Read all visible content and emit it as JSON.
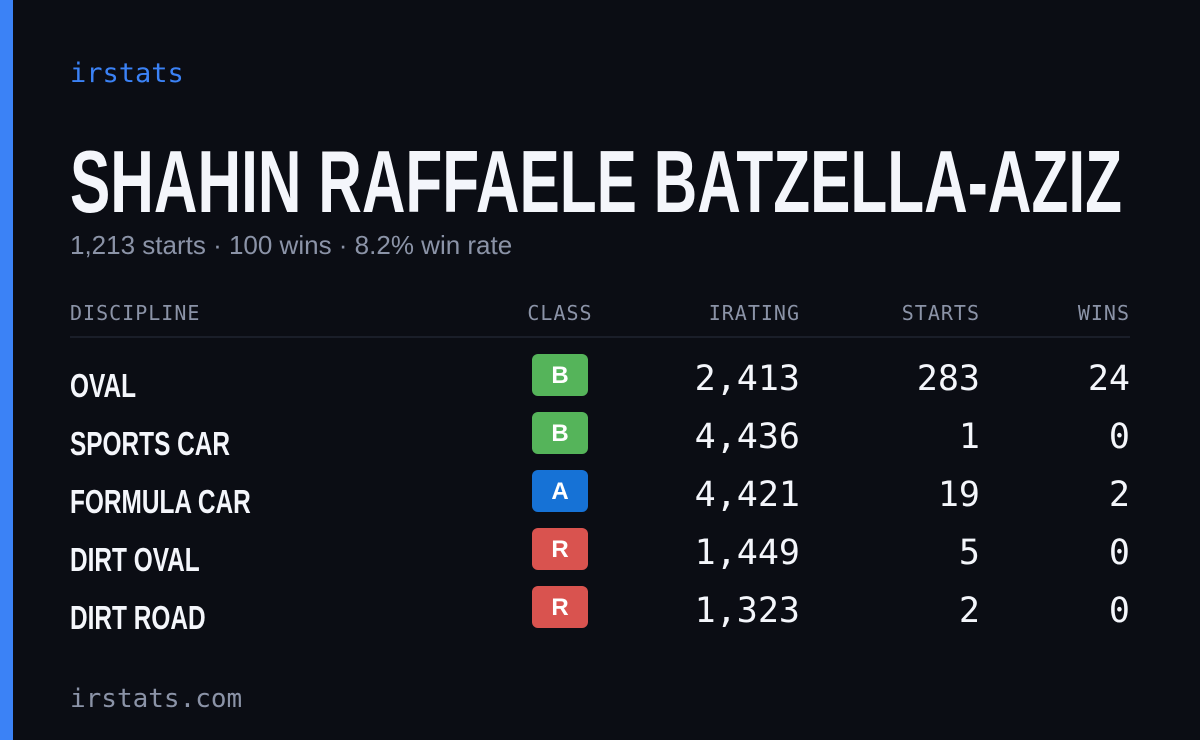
{
  "header": {
    "brand": "irstats",
    "title": "SHAHIN RAFFAELE BATZELLA-AZIZ",
    "subtitle": "1,213 starts · 100 wins · 8.2% win rate"
  },
  "table": {
    "columns": [
      "DISCIPLINE",
      "CLASS",
      "IRATING",
      "STARTS",
      "WINS"
    ],
    "rows": [
      {
        "discipline": "OVAL",
        "class": "B",
        "irating": "2,413",
        "starts": "283",
        "wins": "24"
      },
      {
        "discipline": "SPORTS CAR",
        "class": "B",
        "irating": "4,436",
        "starts": "1",
        "wins": "0"
      },
      {
        "discipline": "FORMULA CAR",
        "class": "A",
        "irating": "4,421",
        "starts": "19",
        "wins": "2"
      },
      {
        "discipline": "DIRT OVAL",
        "class": "R",
        "irating": "1,449",
        "starts": "5",
        "wins": "0"
      },
      {
        "discipline": "DIRT ROAD",
        "class": "R",
        "irating": "1,323",
        "starts": "2",
        "wins": "0"
      }
    ]
  },
  "class_colors": {
    "A": "#1672d6",
    "B": "#55b45a",
    "R": "#d9534f"
  },
  "footer": "irstats.com"
}
